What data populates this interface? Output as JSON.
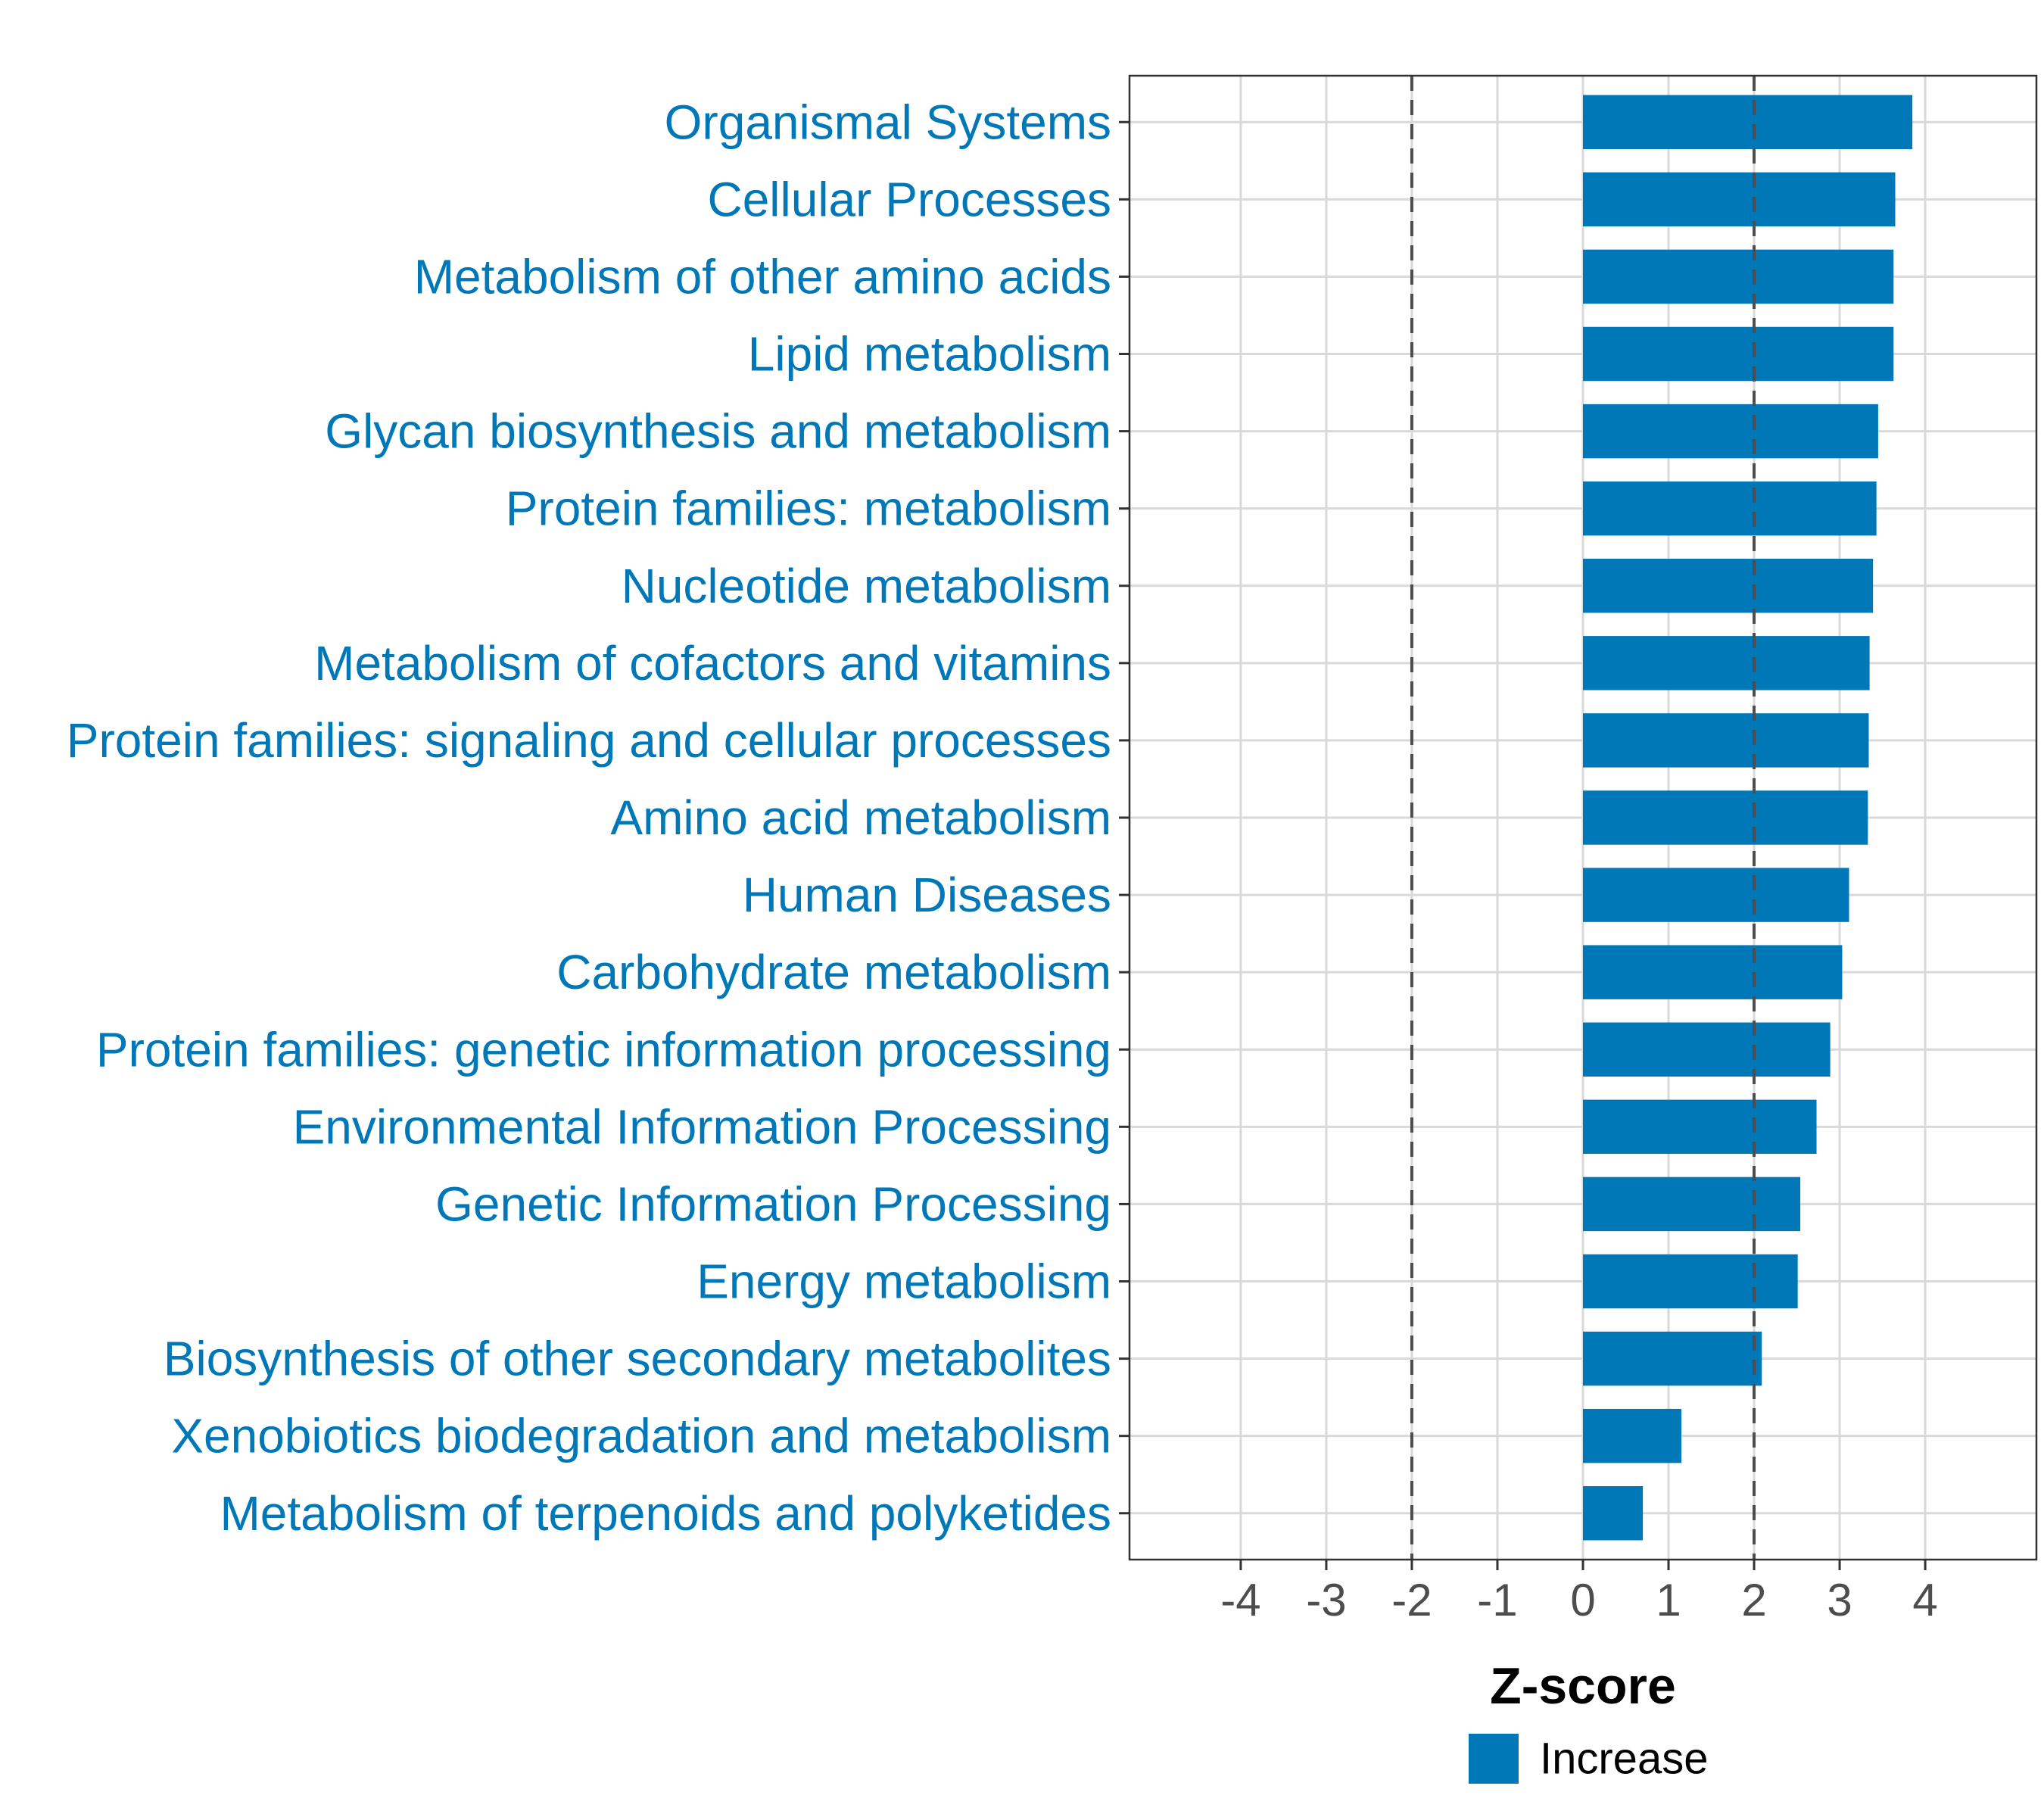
{
  "chart_data": {
    "type": "bar",
    "orientation": "horizontal",
    "categories": [
      "Organismal Systems",
      "Cellular Processes",
      "Metabolism of other amino acids",
      "Lipid metabolism",
      "Glycan biosynthesis and metabolism",
      "Protein families: metabolism",
      "Nucleotide metabolism",
      "Metabolism of cofactors and vitamins",
      "Protein families: signaling and cellular processes",
      "Amino acid metabolism",
      "Human Diseases",
      "Carbohydrate metabolism",
      "Protein families: genetic information processing",
      "Environmental Information Processing",
      "Genetic Information Processing",
      "Energy metabolism",
      "Biosynthesis of other secondary metabolites",
      "Xenobiotics biodegradation and metabolism",
      "Metabolism of terpenoids and polyketides"
    ],
    "values": [
      3.85,
      3.65,
      3.63,
      3.63,
      3.45,
      3.43,
      3.39,
      3.35,
      3.34,
      3.33,
      3.11,
      3.03,
      2.89,
      2.73,
      2.54,
      2.51,
      2.09,
      1.15,
      0.7
    ],
    "xlabel": "Z-score",
    "ylabel": "",
    "xlim": [
      -5.3,
      5.3
    ],
    "xticks": [
      "-4",
      "-3",
      "-2",
      "-1",
      "0",
      "1",
      "2",
      "3",
      "4"
    ],
    "reference_lines": [
      -2,
      2
    ],
    "grid": true,
    "legend": {
      "position": "bottom",
      "entries": [
        {
          "label": "Increase",
          "color": "#0078b8"
        }
      ]
    },
    "colors": {
      "bar": "#0078b8",
      "label": "#0078b8",
      "grid": "#d9d9d9",
      "reference_line": "#4d4d4d"
    }
  }
}
